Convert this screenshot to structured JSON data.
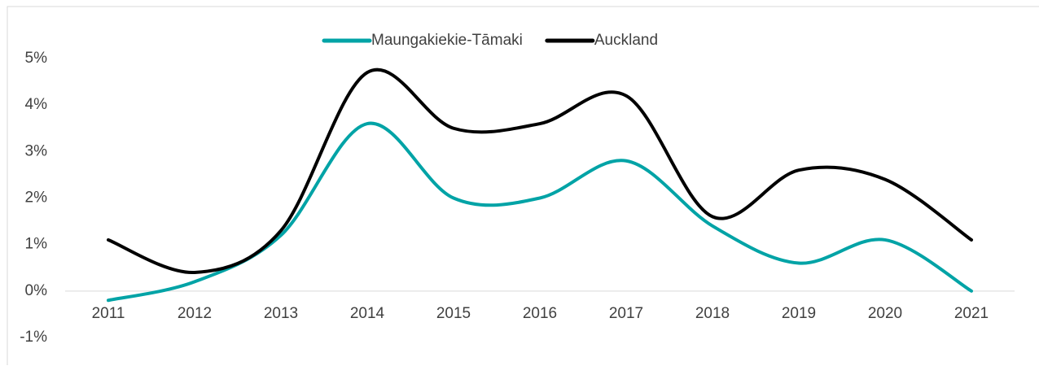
{
  "chart_data": {
    "type": "line",
    "smooth": true,
    "categories": [
      "2011",
      "2012",
      "2013",
      "2014",
      "2015",
      "2016",
      "2017",
      "2018",
      "2019",
      "2020",
      "2021"
    ],
    "series": [
      {
        "name": "Maungakiekie-Tāmaki",
        "color": "#00a3a6",
        "values": [
          -0.2,
          0.2,
          1.2,
          3.6,
          2.0,
          2.0,
          2.8,
          1.4,
          0.6,
          1.1,
          0.0
        ]
      },
      {
        "name": "Auckland",
        "color": "#000000",
        "values": [
          1.1,
          0.4,
          1.3,
          4.7,
          3.5,
          3.6,
          4.2,
          1.6,
          2.6,
          2.4,
          1.1
        ]
      }
    ],
    "ylim": [
      -1,
      5
    ],
    "yticks": [
      {
        "value": -1,
        "label": "-1%"
      },
      {
        "value": 0,
        "label": "0%"
      },
      {
        "value": 1,
        "label": "1%"
      },
      {
        "value": 2,
        "label": "2%"
      },
      {
        "value": 3,
        "label": "3%"
      },
      {
        "value": 4,
        "label": "4%"
      },
      {
        "value": 5,
        "label": "5%"
      }
    ],
    "legend": "top",
    "grid": false
  }
}
